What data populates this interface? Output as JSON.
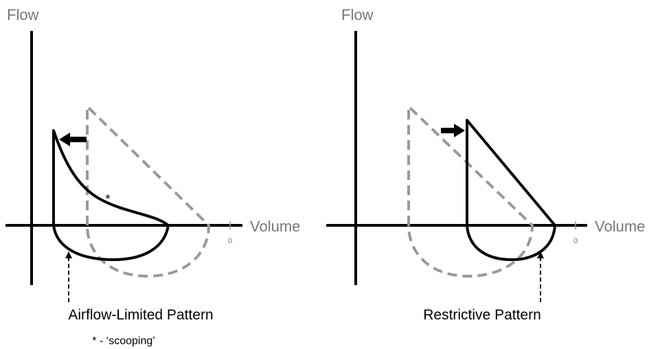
{
  "panels": [
    {
      "y_label": "Flow",
      "x_label": "Volume",
      "zero_label": "0",
      "caption": "Airflow-Limited Pattern",
      "annotation": "*"
    },
    {
      "y_label": "Flow",
      "x_label": "Volume",
      "zero_label": "0",
      "caption": "Restrictive Pattern"
    }
  ],
  "footnote": "* - ‘scooping’"
}
